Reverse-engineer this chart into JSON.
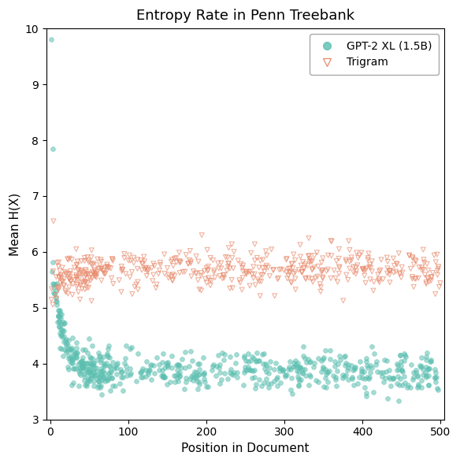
{
  "title": "Entropy Rate in Penn Treebank",
  "xlabel": "Position in Document",
  "ylabel": "Mean H(X)",
  "xlim": [
    -5,
    505
  ],
  "ylim": [
    3,
    10
  ],
  "yticks": [
    3,
    4,
    5,
    6,
    7,
    8,
    9,
    10
  ],
  "xticks": [
    0,
    100,
    200,
    300,
    400,
    500
  ],
  "gpt2_color": "#5BBFB0",
  "trigram_color": "#E8896A",
  "legend_labels": [
    "GPT-2 XL (1.5B)",
    "Trigram"
  ],
  "seed": 42
}
